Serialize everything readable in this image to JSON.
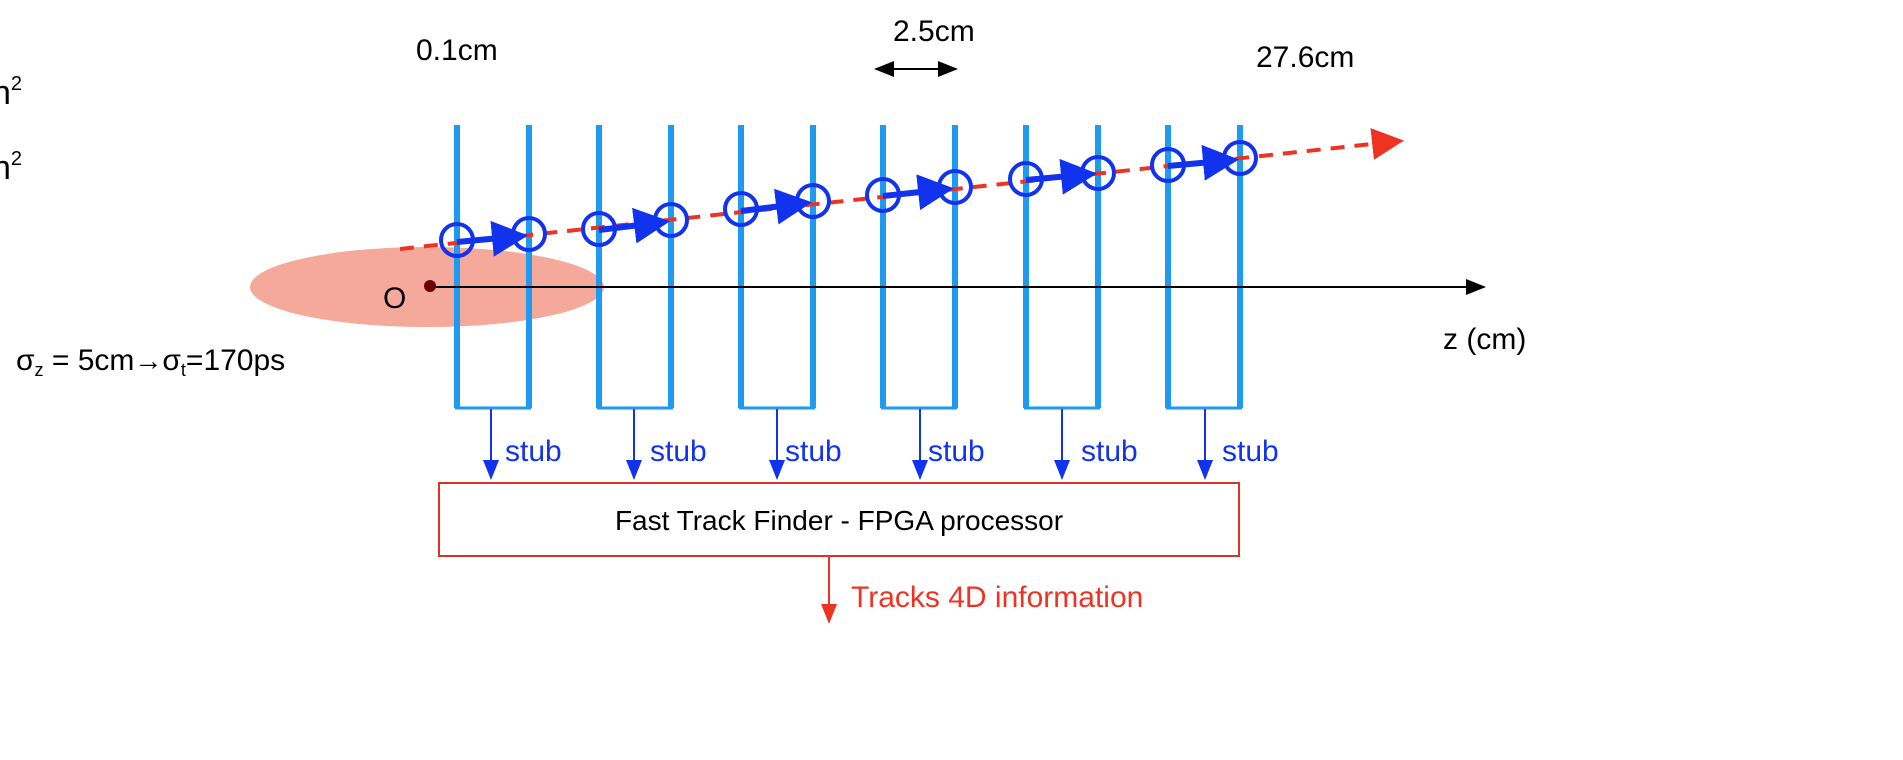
{
  "dimensions": {
    "left_edge": "0.1cm",
    "gap": "2.5cm",
    "right_edge": "27.6cm"
  },
  "left_cut_text": [
    "n",
    "n"
  ],
  "origin_label": "O",
  "axis_label": "z (cm)",
  "beam_spread": {
    "sigma_z_symbol": "σ",
    "sigma_z_sub": "z",
    "sigma_z_value": " = 5cm",
    "arrow": "→",
    "sigma_t_symbol": "σ",
    "sigma_t_sub": "t",
    "sigma_t_value": "=170ps"
  },
  "stubs": [
    "stub",
    "stub",
    "stub",
    "stub",
    "stub",
    "stub"
  ],
  "processor_label": "Fast Track Finder - FPGA processor",
  "output_label": "Tracks 4D information",
  "colors": {
    "layer": "#1e9bf0",
    "track_hit": "#1133ee",
    "stub": "#1133ee",
    "extrapolation": "#ee3322",
    "processor_border": "#dd3322",
    "output_text": "#ee3322",
    "beam_spot": "#f4a090"
  }
}
